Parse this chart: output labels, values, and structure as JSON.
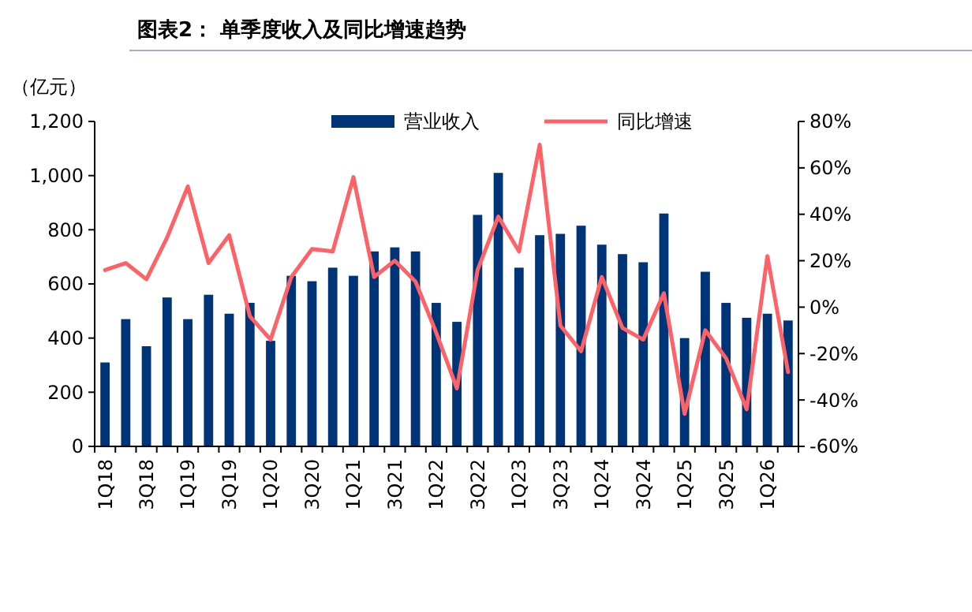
{
  "chart_data": {
    "type": "bar",
    "title": "图表2： 单季度收入及同比增速趋势",
    "ylabel": "（亿元）",
    "categories": [
      "1Q18",
      null,
      "3Q18",
      null,
      "1Q19",
      null,
      "3Q19",
      null,
      "1Q20",
      null,
      "3Q20",
      null,
      "1Q21",
      null,
      "3Q21",
      null,
      "1Q22",
      null,
      "3Q22",
      null,
      "1Q23",
      null,
      "3Q23",
      null,
      "1Q24",
      null,
      "3Q24",
      null,
      "1Q25",
      null,
      "3Q25",
      null,
      "1Q26",
      null
    ],
    "series": [
      {
        "name": "营业收入",
        "color": "#003479",
        "values": [
          310,
          470,
          370,
          550,
          470,
          560,
          490,
          530,
          390,
          630,
          610,
          660,
          630,
          720,
          735,
          720,
          530,
          460,
          855,
          1010,
          660,
          780,
          785,
          815,
          745,
          710,
          680,
          860,
          400,
          645,
          530,
          475,
          490,
          465
        ]
      },
      {
        "name": "同比增速",
        "type": "line",
        "axis": "y2",
        "color": "#ff6266",
        "values": [
          16,
          19,
          12,
          30,
          52,
          19,
          31,
          -4,
          -14,
          13,
          25,
          24,
          56,
          13,
          20,
          11,
          -11,
          -35,
          16,
          39,
          24,
          70,
          -8,
          -19,
          13,
          -9,
          -14,
          6,
          -46,
          -10,
          -22,
          -44,
          22,
          -28
        ]
      }
    ],
    "ylim": [
      0,
      1200
    ],
    "yticks": [
      {
        "value": 0,
        "label": "0"
      },
      {
        "value": 200,
        "label": "200"
      },
      {
        "value": 400,
        "label": "400"
      },
      {
        "value": 600,
        "label": "600"
      },
      {
        "value": 800,
        "label": "800"
      },
      {
        "value": 1000,
        "label": "1,000"
      },
      {
        "value": 1200,
        "label": "1,200"
      }
    ],
    "y2lim": [
      -60,
      80
    ],
    "y2ticks": [
      {
        "value": -60,
        "label": "-60%"
      },
      {
        "value": -40,
        "label": "-40%"
      },
      {
        "value": -20,
        "label": "-20%"
      },
      {
        "value": 0,
        "label": "0%"
      },
      {
        "value": 20,
        "label": "20%"
      },
      {
        "value": 40,
        "label": "40%"
      },
      {
        "value": 60,
        "label": "60%"
      },
      {
        "value": 80,
        "label": "80%"
      }
    ],
    "legend": "top",
    "grid": false
  }
}
